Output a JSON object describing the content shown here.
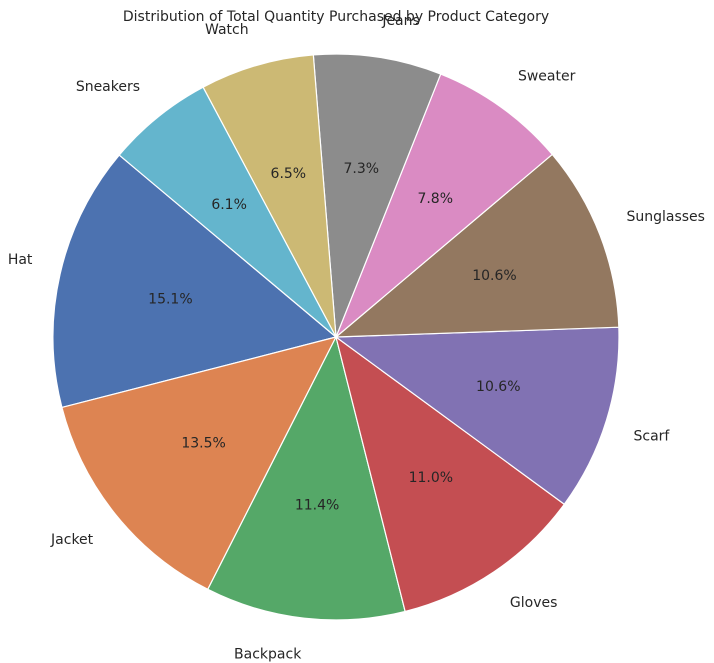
{
  "chart_data": {
    "type": "pie",
    "title": "Distribution of Total Quantity Purchased by Product Category",
    "start_angle_deg": 140,
    "direction": "counterclockwise",
    "slices": [
      {
        "label": "Hat",
        "value": 15.1,
        "pct_label": "15.1%",
        "color": "#4c72b0"
      },
      {
        "label": "Jacket",
        "value": 13.5,
        "pct_label": "13.5%",
        "color": "#dd8452"
      },
      {
        "label": "Backpack",
        "value": 11.4,
        "pct_label": "11.4%",
        "color": "#55a868"
      },
      {
        "label": "Gloves",
        "value": 11.0,
        "pct_label": "11.0%",
        "color": "#c44e52"
      },
      {
        "label": "Scarf",
        "value": 10.6,
        "pct_label": "10.6%",
        "color": "#8172b3"
      },
      {
        "label": "Sunglasses",
        "value": 10.6,
        "pct_label": "10.6%",
        "color": "#937860"
      },
      {
        "label": "Sweater",
        "value": 7.8,
        "pct_label": "7.8%",
        "color": "#da8bc3"
      },
      {
        "label": "Jeans",
        "value": 7.3,
        "pct_label": "7.3%",
        "color": "#8c8c8c"
      },
      {
        "label": "Watch",
        "value": 6.5,
        "pct_label": "6.5%",
        "color": "#ccb974"
      },
      {
        "label": "Sneakers",
        "value": 6.1,
        "pct_label": "6.1%",
        "color": "#64b5cd"
      }
    ]
  }
}
